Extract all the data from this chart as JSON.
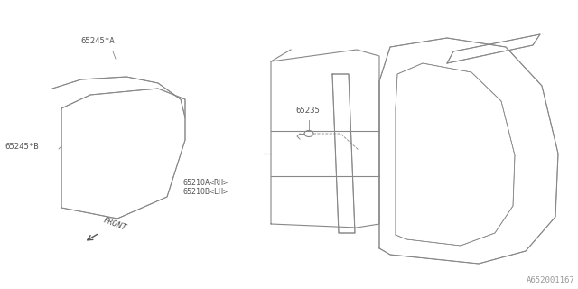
{
  "background_color": "#ffffff",
  "line_color": "#888888",
  "line_color_dark": "#555555",
  "text_color": "#555555",
  "fig_width": 6.4,
  "fig_height": 3.2,
  "dpi": 100,
  "watermark": "A652001167",
  "labels": {
    "part_a": "65245*A",
    "part_b": "65245*B",
    "part_c": "65235",
    "part_d1": "65210A<RH>",
    "part_d2": "65210B<LH>",
    "front": "FRONT"
  }
}
